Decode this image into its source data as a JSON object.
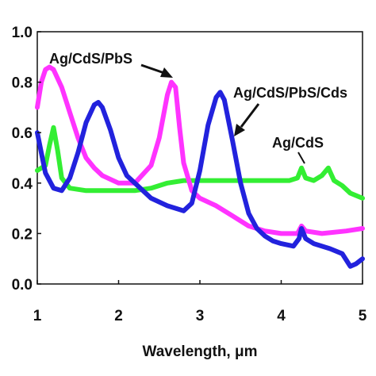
{
  "chart_data": {
    "type": "line",
    "xlabel": "Wavelength, μm",
    "ylabel": "",
    "xlim": [
      1,
      5
    ],
    "ylim": [
      0,
      1
    ],
    "xticks": [
      "1",
      "2",
      "3",
      "4",
      "5"
    ],
    "yticks": [
      "0.0",
      "0.2",
      "0.4",
      "0.6",
      "0.8",
      "1.0"
    ],
    "grid": false,
    "legend": "none",
    "series": [
      {
        "name": "Ag/CdS",
        "color": "#33ee33",
        "points": [
          [
            1.0,
            0.45
          ],
          [
            1.1,
            0.47
          ],
          [
            1.15,
            0.55
          ],
          [
            1.2,
            0.62
          ],
          [
            1.25,
            0.53
          ],
          [
            1.3,
            0.42
          ],
          [
            1.4,
            0.38
          ],
          [
            1.6,
            0.37
          ],
          [
            1.8,
            0.37
          ],
          [
            2.0,
            0.37
          ],
          [
            2.2,
            0.37
          ],
          [
            2.4,
            0.38
          ],
          [
            2.6,
            0.4
          ],
          [
            2.8,
            0.41
          ],
          [
            3.0,
            0.41
          ],
          [
            3.2,
            0.41
          ],
          [
            3.5,
            0.41
          ],
          [
            3.8,
            0.41
          ],
          [
            4.1,
            0.41
          ],
          [
            4.2,
            0.42
          ],
          [
            4.25,
            0.46
          ],
          [
            4.3,
            0.42
          ],
          [
            4.4,
            0.41
          ],
          [
            4.5,
            0.43
          ],
          [
            4.58,
            0.46
          ],
          [
            4.65,
            0.41
          ],
          [
            4.75,
            0.39
          ],
          [
            4.85,
            0.36
          ],
          [
            5.0,
            0.34
          ]
        ]
      },
      {
        "name": "Ag/CdS/PbS",
        "color": "#ff33ff",
        "points": [
          [
            1.0,
            0.7
          ],
          [
            1.05,
            0.8
          ],
          [
            1.1,
            0.85
          ],
          [
            1.15,
            0.86
          ],
          [
            1.2,
            0.85
          ],
          [
            1.3,
            0.78
          ],
          [
            1.4,
            0.68
          ],
          [
            1.5,
            0.58
          ],
          [
            1.6,
            0.5
          ],
          [
            1.7,
            0.46
          ],
          [
            1.8,
            0.43
          ],
          [
            2.0,
            0.4
          ],
          [
            2.2,
            0.4
          ],
          [
            2.4,
            0.47
          ],
          [
            2.5,
            0.58
          ],
          [
            2.6,
            0.75
          ],
          [
            2.65,
            0.8
          ],
          [
            2.7,
            0.78
          ],
          [
            2.75,
            0.62
          ],
          [
            2.8,
            0.48
          ],
          [
            2.9,
            0.37
          ],
          [
            3.0,
            0.34
          ],
          [
            3.2,
            0.31
          ],
          [
            3.4,
            0.27
          ],
          [
            3.6,
            0.23
          ],
          [
            3.8,
            0.21
          ],
          [
            4.0,
            0.2
          ],
          [
            4.2,
            0.2
          ],
          [
            4.25,
            0.23
          ],
          [
            4.3,
            0.21
          ],
          [
            4.5,
            0.2
          ],
          [
            4.8,
            0.21
          ],
          [
            5.0,
            0.22
          ]
        ]
      },
      {
        "name": "Ag/CdS/PbS/Cds",
        "color": "#2222dd",
        "points": [
          [
            1.0,
            0.6
          ],
          [
            1.05,
            0.52
          ],
          [
            1.1,
            0.44
          ],
          [
            1.2,
            0.38
          ],
          [
            1.3,
            0.37
          ],
          [
            1.4,
            0.42
          ],
          [
            1.5,
            0.52
          ],
          [
            1.6,
            0.64
          ],
          [
            1.7,
            0.71
          ],
          [
            1.75,
            0.72
          ],
          [
            1.8,
            0.7
          ],
          [
            1.9,
            0.61
          ],
          [
            2.0,
            0.5
          ],
          [
            2.1,
            0.43
          ],
          [
            2.2,
            0.4
          ],
          [
            2.4,
            0.34
          ],
          [
            2.6,
            0.31
          ],
          [
            2.8,
            0.29
          ],
          [
            2.9,
            0.32
          ],
          [
            3.0,
            0.45
          ],
          [
            3.1,
            0.63
          ],
          [
            3.2,
            0.74
          ],
          [
            3.25,
            0.76
          ],
          [
            3.3,
            0.73
          ],
          [
            3.4,
            0.57
          ],
          [
            3.5,
            0.4
          ],
          [
            3.6,
            0.28
          ],
          [
            3.7,
            0.22
          ],
          [
            3.8,
            0.19
          ],
          [
            3.9,
            0.17
          ],
          [
            4.0,
            0.16
          ],
          [
            4.15,
            0.15
          ],
          [
            4.22,
            0.18
          ],
          [
            4.25,
            0.22
          ],
          [
            4.3,
            0.18
          ],
          [
            4.4,
            0.16
          ],
          [
            4.6,
            0.14
          ],
          [
            4.75,
            0.12
          ],
          [
            4.85,
            0.07
          ],
          [
            4.92,
            0.08
          ],
          [
            5.0,
            0.1
          ]
        ]
      }
    ],
    "annotations": [
      {
        "text": "Ag/CdS/PbS",
        "series": "Ag/CdS/PbS"
      },
      {
        "text": "Ag/CdS/PbS/Cds",
        "series": "Ag/CdS/PbS/Cds"
      },
      {
        "text": "Ag/CdS",
        "series": "Ag/CdS"
      }
    ]
  }
}
